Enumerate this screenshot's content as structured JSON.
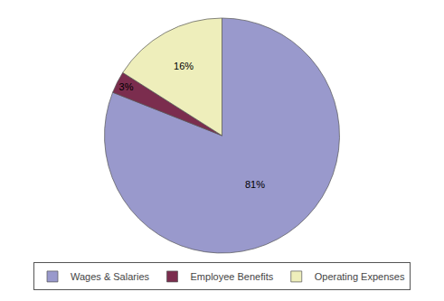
{
  "chart_data": {
    "type": "pie",
    "categories": [
      "Wages & Salaries",
      "Employee Benefits",
      "Operating Expenses"
    ],
    "values": [
      81,
      3,
      16
    ],
    "value_labels": [
      "81%",
      "3%",
      "16%"
    ],
    "colors": [
      "#9999cc",
      "#7b2d4e",
      "#eeeebb"
    ],
    "data_labels": true,
    "legend": "bottom"
  }
}
